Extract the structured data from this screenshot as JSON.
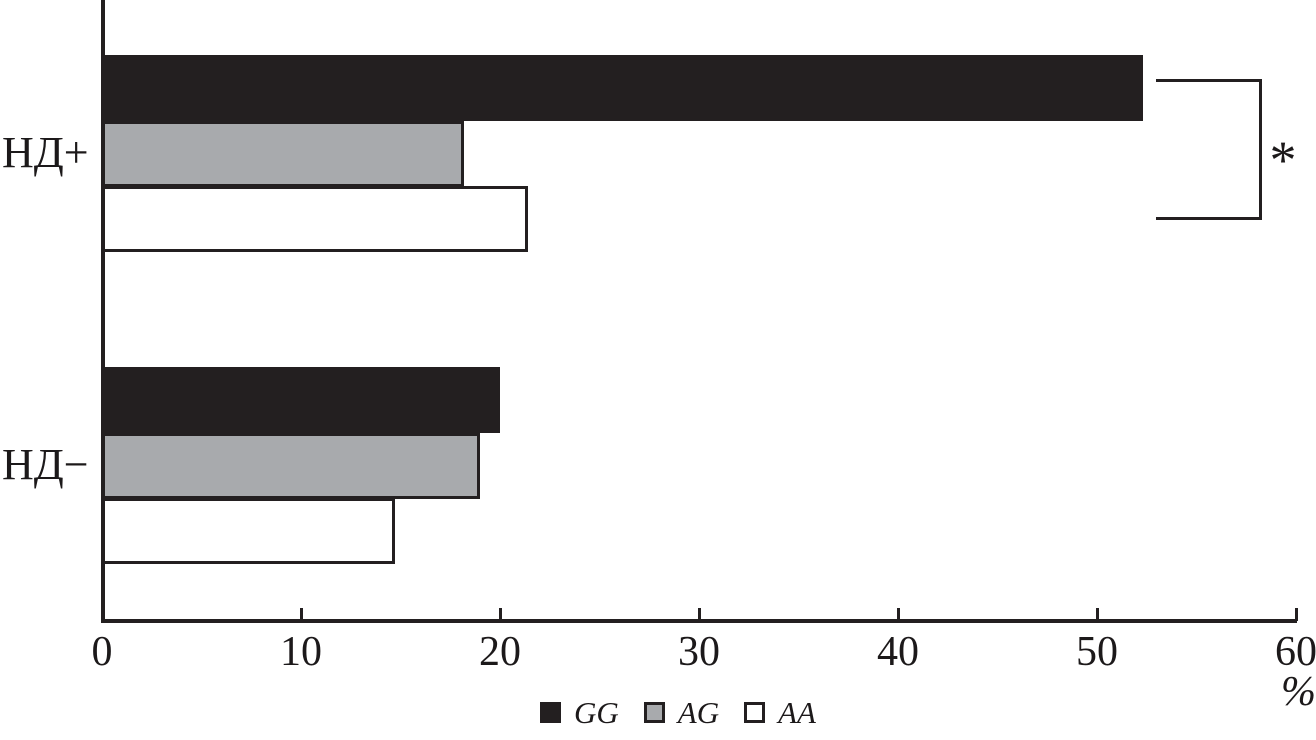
{
  "chart_data": {
    "type": "bar",
    "orientation": "horizontal",
    "title": "",
    "xlabel": "%",
    "xlim": [
      0,
      60
    ],
    "xticks": [
      0,
      10,
      20,
      30,
      40,
      50,
      60
    ],
    "grid": false,
    "categories": [
      "НД+",
      "НД−"
    ],
    "category_slugs": [
      "nd-plus",
      "nd-minus"
    ],
    "series": [
      {
        "name": "GG",
        "slug": "gg",
        "color": "#231f20",
        "values": [
          52.3,
          20.0
        ]
      },
      {
        "name": "AG",
        "slug": "ag",
        "color": "#a8aaad",
        "values": [
          18.2,
          19.0
        ]
      },
      {
        "name": "AA",
        "slug": "aa",
        "color": "#ffffff",
        "values": [
          21.4,
          14.7
        ]
      }
    ],
    "legend_position": "bottom",
    "annotation": {
      "text": "*",
      "group": "НД+",
      "spans": [
        "GG",
        "AA"
      ],
      "meaning": "significance bracket"
    }
  }
}
